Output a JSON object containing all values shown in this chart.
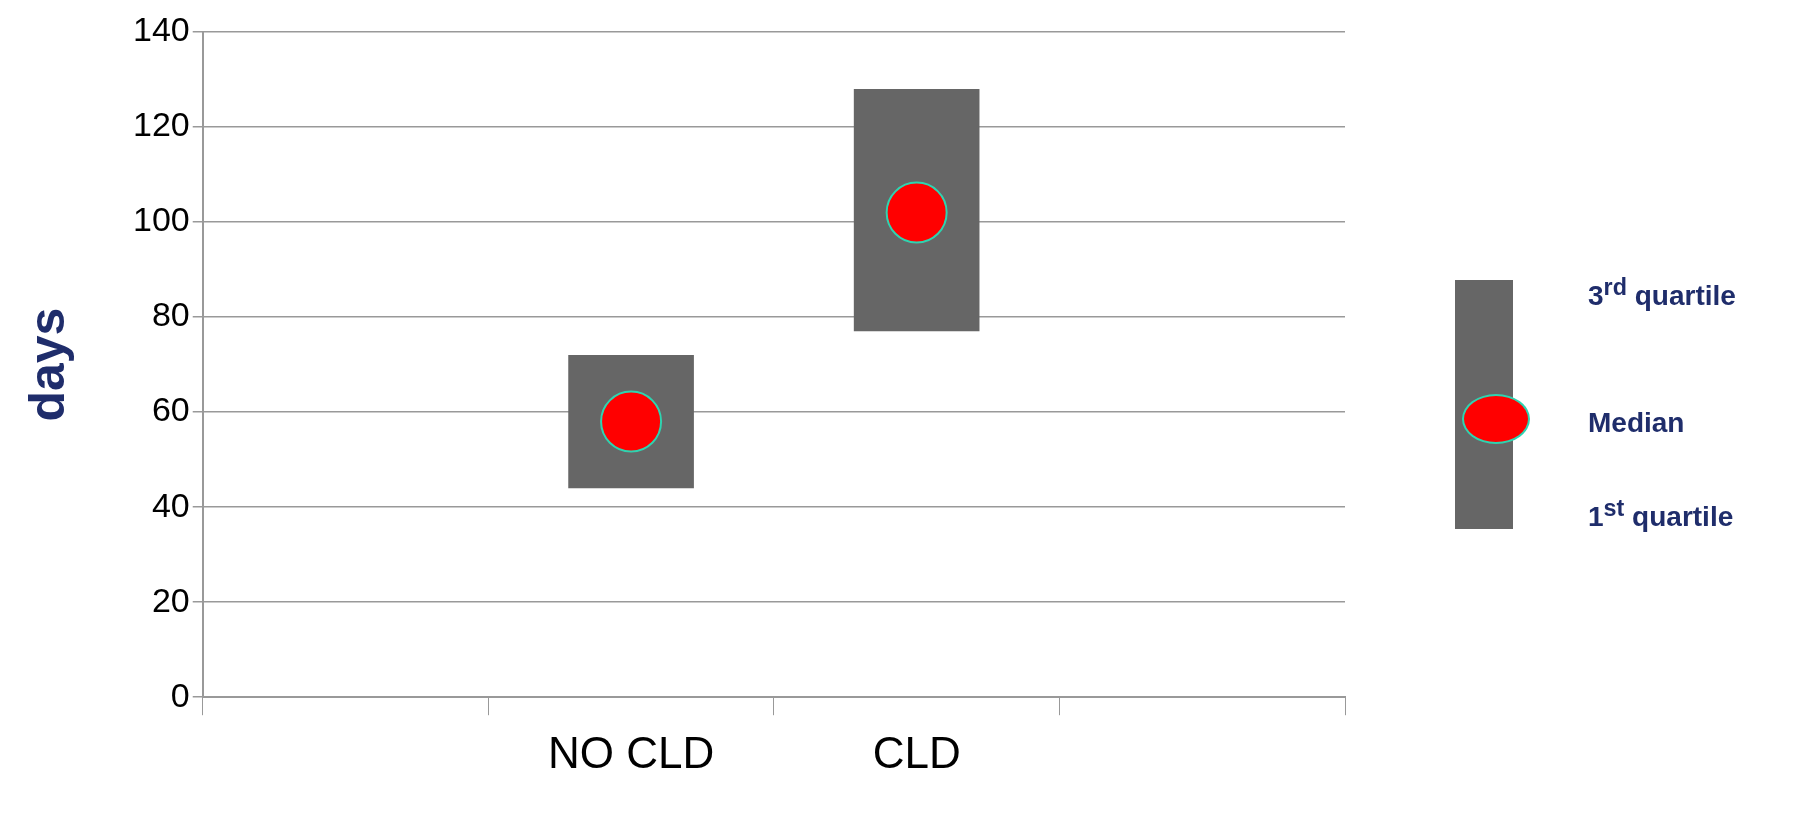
{
  "chart_data": {
    "type": "bar",
    "ylabel": "days",
    "categories": [
      null,
      "NO CLD",
      "CLD",
      null
    ],
    "series": [
      {
        "color": "#666666",
        "values": [
          null,
          28,
          51,
          null
        ],
        "base": [
          null,
          44,
          77,
          null
        ]
      },
      {
        "type": "scatter",
        "name": "Median",
        "color": "#ff0000",
        "x": [
          "NO CLD",
          "CLD"
        ],
        "values": [
          58,
          102
        ]
      }
    ],
    "marker": "circle",
    "ylim": [
      0,
      140
    ],
    "yticks": [
      0,
      20,
      40,
      60,
      80,
      100,
      120,
      140
    ],
    "grid": "y",
    "legend": "right",
    "annotations": [
      "3$^{rd}$ quartile",
      "1$^{st}$ quartile"
    ]
  }
}
